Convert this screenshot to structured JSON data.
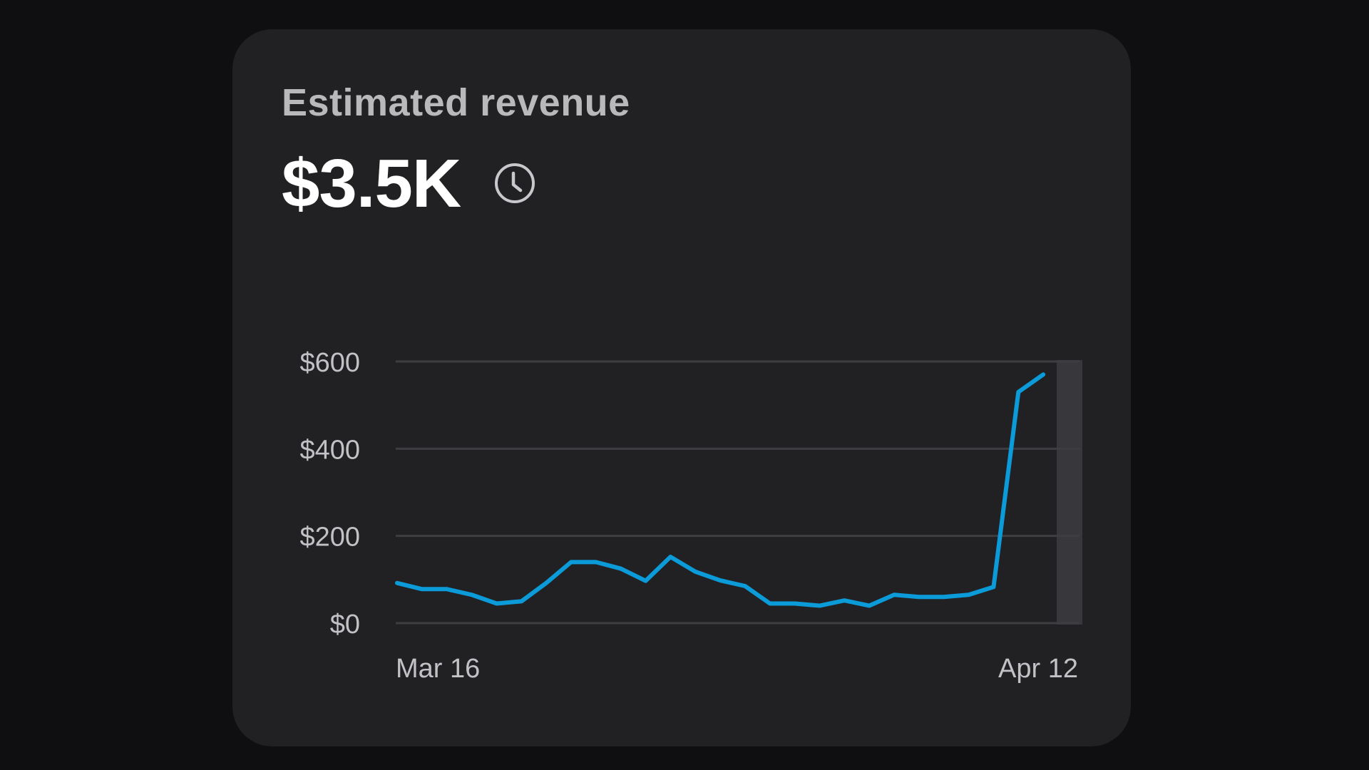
{
  "card": {
    "title": "Estimated revenue",
    "value": "$3.5K",
    "value_icon": "clock-icon"
  },
  "colors": {
    "background": "#0f0f12",
    "card": "#212124",
    "line": "#0c9bd9",
    "grid": "#3e3e42",
    "highlight_band": "#3a3a3e"
  },
  "chart_data": {
    "type": "line",
    "title": "",
    "xlabel": "",
    "ylabel": "",
    "ylim": [
      0,
      600
    ],
    "yticks": [
      "$0",
      "$200",
      "$400",
      "$600"
    ],
    "ytick_values": [
      0,
      200,
      400,
      600
    ],
    "xtick_labels": [
      "Mar 16",
      "Apr 12"
    ],
    "x": [
      "Mar 16",
      "Mar 17",
      "Mar 18",
      "Mar 19",
      "Mar 20",
      "Mar 21",
      "Mar 22",
      "Mar 23",
      "Mar 24",
      "Mar 25",
      "Mar 26",
      "Mar 27",
      "Mar 28",
      "Mar 29",
      "Mar 30",
      "Mar 31",
      "Apr 1",
      "Apr 2",
      "Apr 3",
      "Apr 4",
      "Apr 5",
      "Apr 6",
      "Apr 7",
      "Apr 8",
      "Apr 9",
      "Apr 10",
      "Apr 11",
      "Apr 12"
    ],
    "series": [
      {
        "values": [
          92,
          78,
          78,
          65,
          45,
          50,
          92,
          140,
          140,
          125,
          97,
          152,
          118,
          98,
          85,
          45,
          45,
          40,
          52,
          40,
          65,
          60,
          60,
          65,
          83,
          530,
          570,
          null
        ]
      }
    ],
    "highlight": "Apr 12",
    "grid": true
  }
}
